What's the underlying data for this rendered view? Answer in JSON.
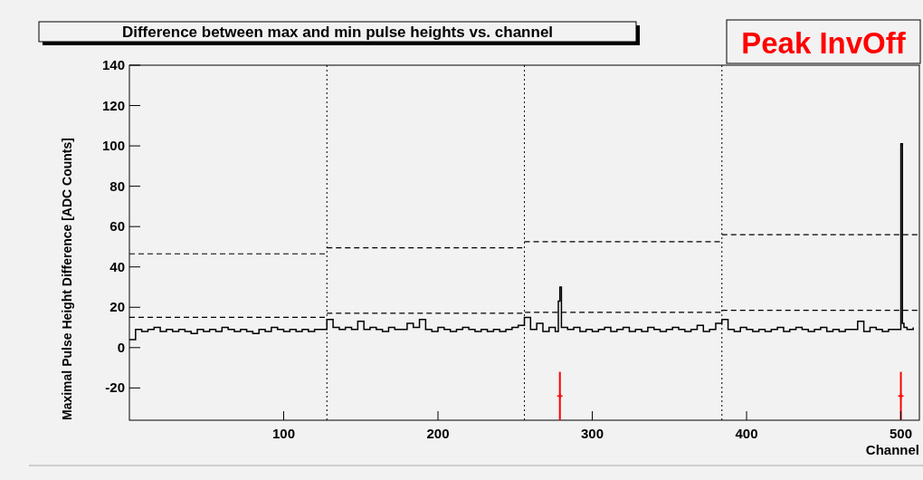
{
  "chart_data": {
    "type": "step",
    "title": "Difference between max and min pulse heights vs. channel",
    "xlabel": "Channel",
    "ylabel": "Maximal Pulse Height Difference [ADC Counts]",
    "annotations": [
      "Peak InvOff"
    ],
    "xlim": [
      0,
      512
    ],
    "xticks": [
      100,
      200,
      300,
      400,
      500
    ],
    "ylim": [
      -36,
      140
    ],
    "yticks": [
      -20,
      0,
      20,
      40,
      60,
      80,
      100,
      120,
      140
    ],
    "grid": false,
    "ref_lines": [
      {
        "axis": "x",
        "value": 128,
        "line_style": "dotted",
        "color": "#000000"
      },
      {
        "axis": "x",
        "value": 256,
        "line_style": "dotted",
        "color": "#000000"
      },
      {
        "axis": "x",
        "value": 384,
        "line_style": "dotted",
        "color": "#000000"
      }
    ],
    "series": [
      {
        "color": "#000000",
        "x": [
          0,
          4,
          8,
          12,
          16,
          20,
          24,
          28,
          32,
          36,
          40,
          44,
          48,
          52,
          56,
          60,
          64,
          68,
          72,
          76,
          80,
          84,
          88,
          92,
          96,
          100,
          104,
          108,
          112,
          116,
          120,
          124,
          128,
          132,
          136,
          140,
          144,
          148,
          152,
          156,
          160,
          164,
          168,
          172,
          176,
          180,
          184,
          188,
          192,
          196,
          200,
          204,
          208,
          212,
          216,
          220,
          224,
          228,
          232,
          236,
          240,
          244,
          248,
          252,
          256,
          260,
          264,
          268,
          272,
          276,
          278,
          279,
          280,
          284,
          288,
          292,
          296,
          300,
          304,
          308,
          312,
          316,
          320,
          324,
          328,
          332,
          336,
          340,
          344,
          348,
          352,
          356,
          360,
          364,
          368,
          372,
          376,
          380,
          384,
          388,
          392,
          396,
          400,
          404,
          408,
          412,
          416,
          420,
          424,
          428,
          432,
          436,
          440,
          444,
          448,
          452,
          456,
          460,
          464,
          468,
          472,
          476,
          480,
          484,
          488,
          492,
          496,
          498,
          500,
          501,
          502,
          504,
          508
        ],
        "values": [
          4,
          9,
          8,
          9,
          10,
          8,
          9,
          8,
          9,
          8,
          7,
          9,
          8,
          9,
          8,
          10,
          9,
          8,
          9,
          8,
          7,
          9,
          8,
          10,
          9,
          8,
          9,
          8,
          9,
          8,
          9,
          9,
          14,
          10,
          9,
          10,
          9,
          13,
          9,
          10,
          9,
          8,
          10,
          9,
          9,
          12,
          10,
          14,
          9,
          8,
          10,
          9,
          8,
          9,
          10,
          9,
          8,
          9,
          8,
          9,
          8,
          9,
          10,
          11,
          15,
          9,
          12,
          8,
          10,
          8,
          23,
          30,
          10,
          9,
          10,
          8,
          9,
          8,
          9,
          10,
          8,
          9,
          10,
          8,
          9,
          8,
          10,
          9,
          8,
          9,
          10,
          9,
          8,
          9,
          11,
          8,
          9,
          12,
          14,
          9,
          8,
          10,
          9,
          8,
          9,
          8,
          9,
          10,
          8,
          9,
          10,
          9,
          8,
          9,
          10,
          8,
          9,
          8,
          9,
          9,
          13,
          8,
          10,
          9,
          8,
          9,
          9,
          9,
          101,
          12,
          10,
          9,
          10
        ]
      },
      {
        "type": "line",
        "line_style": "dashed",
        "color": "#000000",
        "x": [
          0,
          128
        ],
        "values": [
          46.5,
          46.5
        ]
      },
      {
        "type": "line",
        "line_style": "dashed",
        "color": "#000000",
        "x": [
          128,
          256
        ],
        "values": [
          49.5,
          49.5
        ]
      },
      {
        "type": "line",
        "line_style": "dashed",
        "color": "#000000",
        "x": [
          256,
          384
        ],
        "values": [
          52.5,
          52.5
        ]
      },
      {
        "type": "line",
        "line_style": "dashed",
        "color": "#000000",
        "x": [
          384,
          512
        ],
        "values": [
          56,
          56
        ]
      },
      {
        "type": "line",
        "line_style": "dashed",
        "color": "#000000",
        "x": [
          0,
          128
        ],
        "values": [
          15,
          15
        ]
      },
      {
        "type": "line",
        "line_style": "dashed",
        "color": "#000000",
        "x": [
          128,
          256,
          256,
          384
        ],
        "values": [
          17,
          17,
          17.5,
          17.5
        ]
      },
      {
        "type": "line",
        "line_style": "dashed",
        "color": "#000000",
        "x": [
          384,
          512
        ],
        "values": [
          18.5,
          18.5
        ]
      },
      {
        "type": "scatter",
        "marker": "cross",
        "color": "#ff0000",
        "x": [
          279,
          500
        ],
        "values": [
          -24,
          -24
        ],
        "errors": [
          12,
          12
        ]
      }
    ]
  }
}
